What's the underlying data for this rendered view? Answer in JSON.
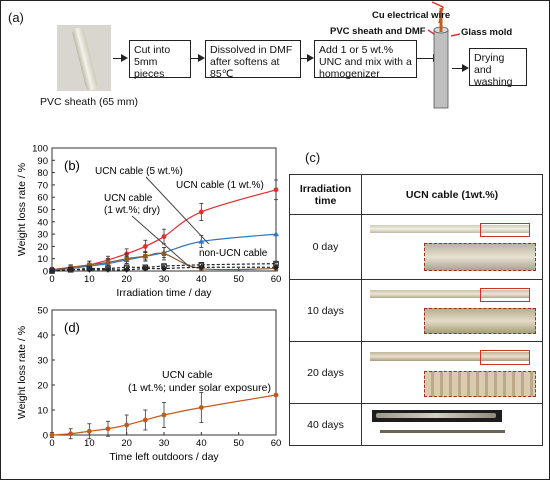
{
  "panel_a": {
    "label": "(a)",
    "photo_caption": "PVC sheath (65 mm)",
    "steps": [
      "Cut into 5mm pieces",
      "Dissolved in DMF after softens at 85℃",
      "Add 1 or 5 wt.% UNC and mix with a homogenizer",
      "Drying and washing"
    ],
    "mold_labels": {
      "wire": "Cu electrical wire",
      "sheath": "PVC sheath and DMF",
      "mold": "Glass mold"
    }
  },
  "panel_c": {
    "label": "(c)",
    "col1_header": "Irradiation time",
    "col2_header": "UCN cable (1wt.%)",
    "rows": [
      "0 day",
      "10 days",
      "20 days",
      "40 days"
    ]
  },
  "colors": {
    "red": "#e03030",
    "blue": "#2f78c4",
    "brown": "#8b5a2b",
    "black": "#222222",
    "orange": "#c25a1c"
  },
  "chart_data": [
    {
      "type": "line",
      "panel": "(b)",
      "xlabel": "Irradiation time / day",
      "ylabel": "Weight loss rate / %",
      "xlim": [
        0,
        60
      ],
      "ylim": [
        0,
        100
      ],
      "xticks": [
        0,
        10,
        20,
        30,
        40,
        50,
        60
      ],
      "yticks": [
        0,
        10,
        20,
        30,
        40,
        50,
        60,
        70,
        80,
        90,
        100
      ],
      "annotations": [
        "UCN cable (5 wt.%)",
        "UCN cable (1 wt.%)",
        "UCN cable (1 wt.%; dry)",
        "non-UCN cable"
      ],
      "series": [
        {
          "name": "UCN cable (1 wt.%)",
          "color": "#e03030",
          "marker": "circle",
          "x": [
            0,
            5,
            10,
            15,
            20,
            25,
            30,
            40,
            60
          ],
          "y": [
            1,
            3,
            5,
            9,
            14,
            20,
            28,
            48,
            66
          ],
          "err": [
            1,
            2,
            3,
            3,
            4,
            5,
            6,
            7,
            8
          ]
        },
        {
          "name": "UCN cable (5 wt.%)",
          "color": "#2f78c4",
          "marker": "triangle",
          "x": [
            0,
            5,
            10,
            15,
            20,
            25,
            30,
            40,
            60
          ],
          "y": [
            0.5,
            2,
            4,
            6,
            9,
            12,
            15,
            24,
            30
          ],
          "err": [
            1,
            1,
            2,
            2,
            3,
            3,
            4,
            5,
            0
          ]
        },
        {
          "name": "UCN cable (1 wt.%; dry)",
          "color": "#8b5a2b",
          "marker": "square",
          "x": [
            0,
            5,
            10,
            15,
            20,
            25,
            30,
            40,
            60
          ],
          "y": [
            1,
            3,
            5,
            7,
            10,
            12,
            14,
            2,
            2
          ],
          "err": [
            2,
            2,
            3,
            3,
            4,
            4,
            5,
            2,
            2
          ]
        },
        {
          "name": "non-UCN cable",
          "color": "#222222",
          "marker": "diamond",
          "x": [
            0,
            5,
            10,
            15,
            20,
            25,
            30,
            40,
            60
          ],
          "y": [
            0,
            1,
            1,
            1,
            1,
            2,
            2,
            3,
            3
          ],
          "err": [
            1,
            1,
            1,
            1,
            1,
            1,
            1,
            1,
            1
          ]
        },
        {
          "name": "non-UCN cable (open)",
          "color": "#222222",
          "marker": "open-square",
          "x": [
            0,
            5,
            10,
            15,
            20,
            25,
            30,
            40,
            60
          ],
          "y": [
            0,
            1,
            2,
            2,
            3,
            3,
            4,
            5,
            6
          ],
          "err": [
            1,
            1,
            1,
            1,
            1,
            1,
            1,
            1,
            1
          ]
        }
      ]
    },
    {
      "type": "line",
      "panel": "(d)",
      "xlabel": "Time left outdoors / day",
      "ylabel": "Weight loss rate / %",
      "xlim": [
        0,
        60
      ],
      "ylim": [
        0,
        50
      ],
      "xticks": [
        0,
        10,
        20,
        30,
        40,
        50,
        60
      ],
      "yticks": [
        0,
        10,
        20,
        30,
        40,
        50
      ],
      "annotations": [
        "UCN cable",
        "(1 wt.%; under solar exposure)"
      ],
      "series": [
        {
          "name": "UCN cable (1 wt.%; under solar exposure)",
          "color": "#c25a1c",
          "marker": "circle",
          "x": [
            0,
            5,
            10,
            15,
            20,
            25,
            30,
            40,
            60
          ],
          "y": [
            0,
            0.5,
            1.5,
            2.5,
            4,
            6,
            8,
            11,
            16
          ],
          "err": [
            1,
            2,
            3,
            3,
            4,
            4,
            5,
            6,
            0
          ]
        }
      ]
    }
  ]
}
